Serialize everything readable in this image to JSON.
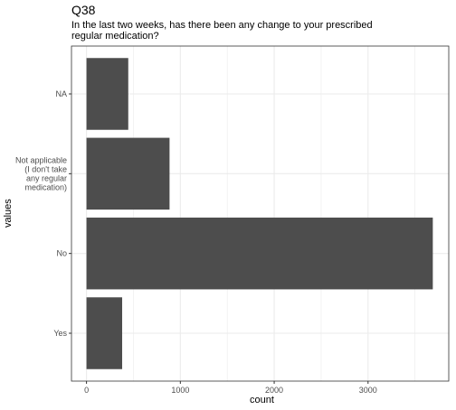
{
  "chart_data": {
    "type": "bar",
    "orientation": "horizontal",
    "title": "Q38",
    "subtitle": "In the last two weeks, has there been any change to your prescribed\nregular medication?",
    "xlabel": "count",
    "ylabel": "values",
    "categories": [
      "NA",
      "Not applicable\n(I don't take\nany regular\nmedication)",
      "No",
      "Yes"
    ],
    "values": [
      445,
      885,
      3690,
      380
    ],
    "xlim": [
      -160,
      3860
    ],
    "xticks": [
      0,
      1000,
      2000,
      3000
    ],
    "xtick_labels": [
      "0",
      "1000",
      "2000",
      "3000"
    ],
    "grid": true,
    "bar_color": "#4d4d4d",
    "grid_color": "#ebebeb",
    "panel_border_color": "#333333"
  }
}
